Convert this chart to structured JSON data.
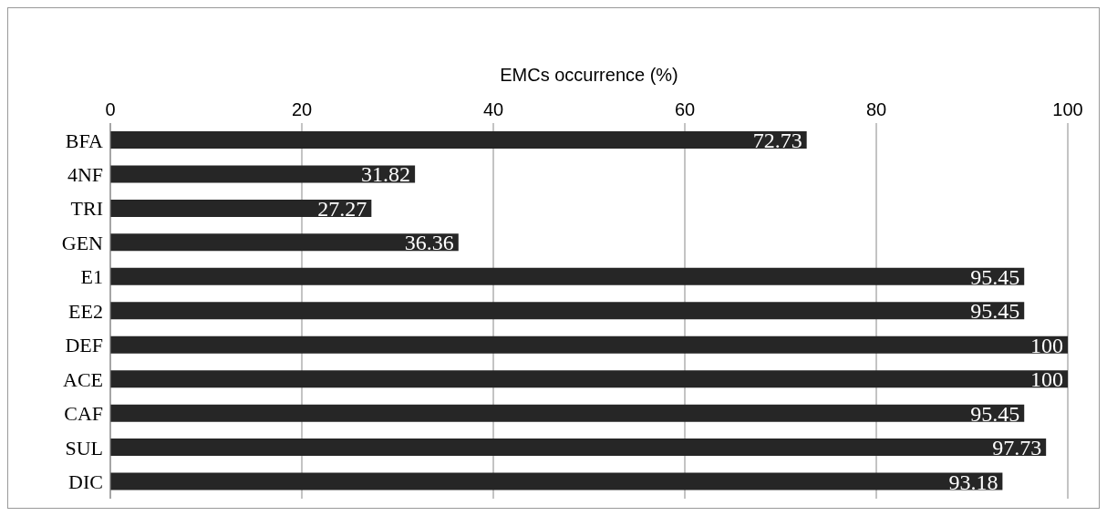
{
  "chart_data": {
    "type": "bar",
    "orientation": "horizontal",
    "xlabel": "EMCs occurrence (%)",
    "categories": [
      "BFA",
      "4NF",
      "TRI",
      "GEN",
      "E1",
      "EE2",
      "DEF",
      "ACE",
      "CAF",
      "SUL",
      "DIC"
    ],
    "values": [
      72.73,
      31.82,
      27.27,
      36.36,
      95.45,
      95.45,
      100,
      100,
      95.45,
      97.73,
      93.18
    ],
    "color": "#262626",
    "xlim": [
      0,
      100
    ],
    "xticks": [
      0,
      20,
      40,
      60,
      80,
      100
    ],
    "grid": "x",
    "data_labels": true
  }
}
